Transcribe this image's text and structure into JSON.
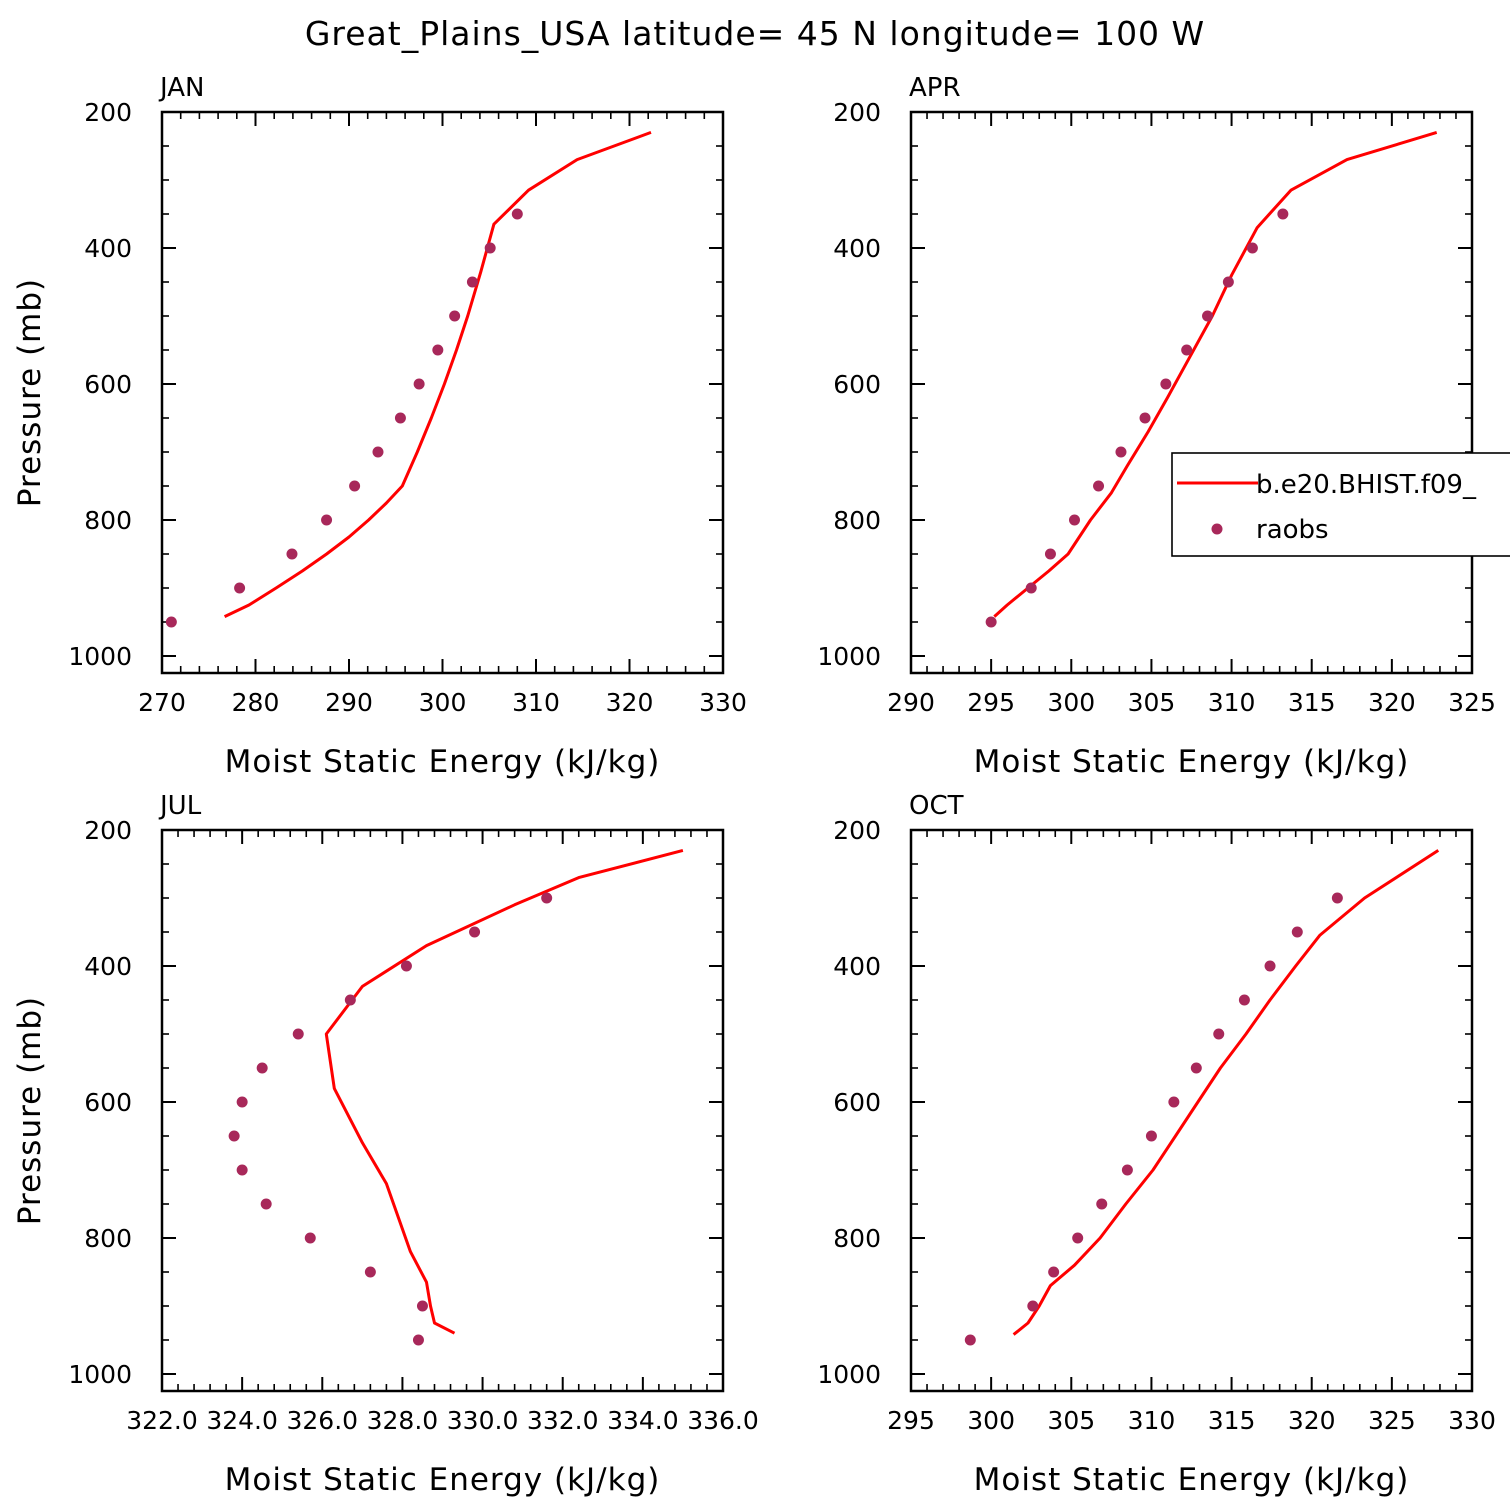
{
  "figure": {
    "title": "Great_Plains_USA   latitude= 45 N longitude= 100 W"
  },
  "colors": {
    "model": "#ff0000",
    "obs": "#a8285a",
    "axis": "#000000"
  },
  "legend": {
    "entries": [
      {
        "label": "b.e20.BHIST.f09_",
        "style": "line"
      },
      {
        "label": "raobs",
        "style": "marker"
      }
    ]
  },
  "chart_data": [
    {
      "type": "line",
      "panel_label": "JAN",
      "xlabel": "Moist Static Energy (kJ/kg)",
      "ylabel": "Pressure (mb)",
      "xlim": [
        270,
        330
      ],
      "ylim": [
        1025,
        200
      ],
      "x_ticks": [
        270,
        280,
        290,
        300,
        310,
        320,
        330
      ],
      "x_tick_labels": [
        "270",
        "280",
        "290",
        "300",
        "310",
        "320",
        "330"
      ],
      "y_ticks": [
        200,
        400,
        600,
        800,
        1000
      ],
      "y_tick_labels": [
        "200",
        "400",
        "600",
        "800",
        "1000"
      ],
      "series": [
        {
          "name": "b.e20.BHIST.f09_",
          "style": "line",
          "x": [
            276.7,
            279.3,
            282.2,
            285.0,
            287.6,
            290.0,
            292.1,
            294.0,
            295.7,
            297.3,
            298.8,
            300.2,
            301.5,
            302.7,
            304.1,
            305.5,
            309.2,
            314.4,
            322.3
          ],
          "y": [
            942,
            925,
            900,
            875,
            850,
            825,
            800,
            775,
            750,
            700,
            650,
            600,
            550,
            500,
            435,
            365,
            315,
            270,
            230
          ]
        },
        {
          "name": "raobs",
          "style": "marker",
          "x": [
            271.0,
            278.3,
            283.9,
            287.6,
            290.6,
            293.1,
            295.5,
            297.5,
            299.5,
            301.3,
            303.2,
            305.1,
            308.0
          ],
          "y": [
            950,
            900,
            850,
            800,
            750,
            700,
            650,
            600,
            550,
            500,
            450,
            400,
            350
          ]
        }
      ]
    },
    {
      "type": "line",
      "panel_label": "APR",
      "xlabel": "Moist Static Energy (kJ/kg)",
      "ylabel": "",
      "xlim": [
        290,
        325
      ],
      "ylim": [
        1025,
        200
      ],
      "x_ticks": [
        290,
        295,
        300,
        305,
        310,
        315,
        320,
        325
      ],
      "x_tick_labels": [
        "290",
        "295",
        "300",
        "305",
        "310",
        "315",
        "320",
        "325"
      ],
      "y_ticks": [
        200,
        400,
        600,
        800,
        1000
      ],
      "y_tick_labels": [
        "200",
        "400",
        "600",
        "800",
        "1000"
      ],
      "series": [
        {
          "name": "b.e20.BHIST.f09_",
          "style": "line",
          "x": [
            295.2,
            296.0,
            297.3,
            298.6,
            299.8,
            301.2,
            302.5,
            303.5,
            304.8,
            306.0,
            307.4,
            308.8,
            310.0,
            311.6,
            313.7,
            317.2,
            322.8
          ],
          "y": [
            942,
            925,
            900,
            875,
            850,
            800,
            760,
            720,
            670,
            620,
            560,
            500,
            440,
            370,
            315,
            270,
            230
          ]
        },
        {
          "name": "raobs",
          "style": "marker",
          "x": [
            295.0,
            297.5,
            298.7,
            300.2,
            301.7,
            303.1,
            304.6,
            305.9,
            307.2,
            308.5,
            309.8,
            311.3,
            313.2
          ],
          "y": [
            950,
            900,
            850,
            800,
            750,
            700,
            650,
            600,
            550,
            500,
            450,
            400,
            350
          ]
        }
      ]
    },
    {
      "type": "line",
      "panel_label": "JUL",
      "xlabel": "Moist Static Energy (kJ/kg)",
      "ylabel": "Pressure (mb)",
      "xlim": [
        322.0,
        336.0
      ],
      "ylim": [
        1025,
        200
      ],
      "x_ticks": [
        322.0,
        324.0,
        326.0,
        328.0,
        330.0,
        332.0,
        334.0,
        336.0
      ],
      "x_tick_labels": [
        "322.0",
        "324.0",
        "326.0",
        "328.0",
        "330.0",
        "332.0",
        "334.0",
        "336.0"
      ],
      "y_ticks": [
        200,
        400,
        600,
        800,
        1000
      ],
      "y_tick_labels": [
        "200",
        "400",
        "600",
        "800",
        "1000"
      ],
      "series": [
        {
          "name": "b.e20.BHIST.f09_",
          "style": "line",
          "x": [
            329.3,
            328.8,
            328.7,
            328.6,
            328.2,
            327.6,
            327.0,
            326.3,
            326.1,
            327.0,
            328.6,
            330.8,
            332.4,
            335.0
          ],
          "y": [
            940,
            925,
            900,
            865,
            820,
            720,
            660,
            580,
            500,
            430,
            370,
            310,
            270,
            230
          ]
        },
        {
          "name": "raobs",
          "style": "marker",
          "x": [
            328.4,
            328.5,
            327.2,
            325.7,
            324.6,
            324.0,
            323.8,
            324.0,
            324.5,
            325.4,
            326.7,
            328.1,
            329.8,
            331.6
          ],
          "y": [
            950,
            900,
            850,
            800,
            750,
            700,
            650,
            600,
            550,
            500,
            450,
            400,
            350,
            300
          ]
        }
      ]
    },
    {
      "type": "line",
      "panel_label": "OCT",
      "xlabel": "Moist Static Energy (kJ/kg)",
      "ylabel": "",
      "xlim": [
        295,
        330
      ],
      "ylim": [
        1025,
        200
      ],
      "x_ticks": [
        295,
        300,
        305,
        310,
        315,
        320,
        325,
        330
      ],
      "x_tick_labels": [
        "295",
        "300",
        "305",
        "310",
        "315",
        "320",
        "325",
        "330"
      ],
      "y_ticks": [
        200,
        400,
        600,
        800,
        1000
      ],
      "y_tick_labels": [
        "200",
        "400",
        "600",
        "800",
        "1000"
      ],
      "series": [
        {
          "name": "b.e20.BHIST.f09_",
          "style": "line",
          "x": [
            301.4,
            302.3,
            303.0,
            303.7,
            305.2,
            306.8,
            308.4,
            310.1,
            311.5,
            312.9,
            314.3,
            315.9,
            317.4,
            319.0,
            320.5,
            323.3,
            327.9
          ],
          "y": [
            942,
            925,
            900,
            870,
            840,
            800,
            750,
            700,
            650,
            600,
            550,
            500,
            450,
            400,
            355,
            300,
            230
          ]
        },
        {
          "name": "raobs",
          "style": "marker",
          "x": [
            298.7,
            302.6,
            303.9,
            305.4,
            306.9,
            308.5,
            310.0,
            311.4,
            312.8,
            314.2,
            315.8,
            317.4,
            319.1,
            321.6
          ],
          "y": [
            950,
            900,
            850,
            800,
            750,
            700,
            650,
            600,
            550,
            500,
            450,
            400,
            350,
            300
          ]
        }
      ]
    }
  ]
}
